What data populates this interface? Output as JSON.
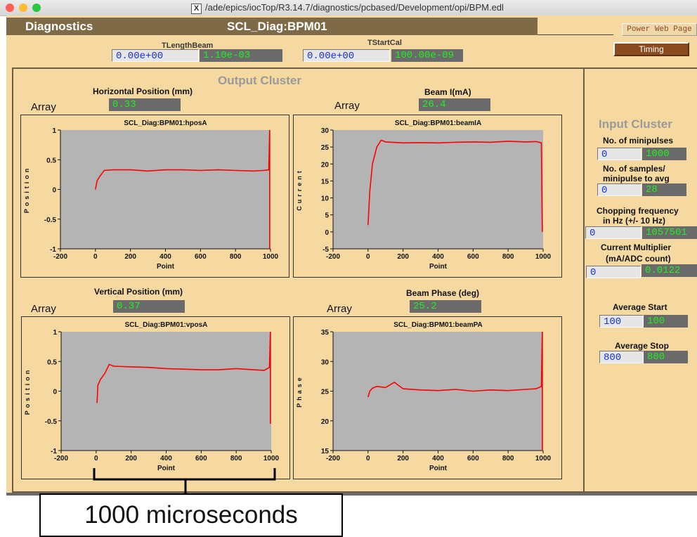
{
  "window": {
    "title": "/ade/epics/iocTop/R3.14.7/diagnostics/pcbased/Development/opi/BPM.edl",
    "dots": [
      "#fe5f57",
      "#febc2e",
      "#28c840"
    ]
  },
  "header": {
    "left_title": "Diagnostics",
    "device": "SCL_Diag:BPM01",
    "power_button": "Power Web Page",
    "timing_button": "Timing"
  },
  "top_fields": {
    "tlength": {
      "label": "TLengthBeam",
      "set": "0.00e+00",
      "readback": "1.10e-03"
    },
    "tstart": {
      "label": "TStartCal",
      "set": "0.00e+00",
      "readback": "100.00e-09"
    }
  },
  "output_cluster": {
    "title": "Output Cluster",
    "array_label": "Array",
    "x_axis_label": "Point",
    "plots": [
      {
        "heading": "Horizontal Position (mm)",
        "value": "0.33",
        "chart_title": "SCL_Diag:BPM01:hposA",
        "ylabel": "Position"
      },
      {
        "heading": "Beam I(mA)",
        "value": "26.4",
        "chart_title": "SCL_Diag:BPM01:beamIA",
        "ylabel": "Current"
      },
      {
        "heading": "Vertical Position (mm)",
        "value": "0.37",
        "chart_title": "SCL_Diag:BPM01:vposA",
        "ylabel": "Position"
      },
      {
        "heading": "Beam Phase (deg)",
        "value": "25.2",
        "chart_title": "SCL_Diag:BPM01:beamPA",
        "ylabel": "Phase"
      }
    ]
  },
  "input_cluster": {
    "title": "Input Cluster",
    "minipulses": {
      "label": "No. of minipulses",
      "set": "0",
      "readback": "1000"
    },
    "samples": {
      "label1": "No. of samples/",
      "label2": "minipulse to avg",
      "set": "0",
      "readback": "28"
    },
    "chopping": {
      "label1": "Chopping frequency",
      "label2": "in Hz (+/- 10 Hz)",
      "set": "0",
      "readback": "1057501"
    },
    "multiplier": {
      "label1": "Current Multiplier",
      "label2": "(mA/ADC count)",
      "set": "0",
      "readback": "0.0122"
    },
    "avg_start": {
      "label": "Average Start",
      "set": "100",
      "readback": "100"
    },
    "avg_stop": {
      "label": "Average Stop",
      "set": "800",
      "readback": "800"
    }
  },
  "annotation": {
    "text": "1000 microseconds"
  },
  "chart_data": [
    {
      "type": "line",
      "title": "SCL_Diag:BPM01:hposA",
      "xlabel": "Point",
      "ylabel": "Position",
      "xlim": [
        -200,
        1000
      ],
      "ylim": [
        -1,
        1
      ],
      "xticks": [
        "-200",
        "0",
        "200",
        "400",
        "600",
        "800",
        "1000"
      ],
      "yticks": [
        "1",
        "0.5",
        "0",
        "-0.5",
        "-1"
      ],
      "series": [
        {
          "color": "#ff0000",
          "x": [
            0,
            10,
            25,
            50,
            100,
            200,
            300,
            400,
            500,
            600,
            700,
            800,
            900,
            960,
            990,
            995,
            995
          ],
          "y": [
            0.0,
            0.15,
            0.22,
            0.32,
            0.33,
            0.33,
            0.31,
            0.33,
            0.33,
            0.32,
            0.33,
            0.32,
            0.31,
            0.32,
            0.33,
            1.0,
            -1.0
          ]
        }
      ]
    },
    {
      "type": "line",
      "title": "SCL_Diag:BPM01:beamIA",
      "xlabel": "Point",
      "ylabel": "Current",
      "xlim": [
        -200,
        1000
      ],
      "ylim": [
        -5,
        30
      ],
      "xticks": [
        "-200",
        "0",
        "200",
        "400",
        "600",
        "800",
        "1000"
      ],
      "yticks": [
        "30",
        "25",
        "20",
        "15",
        "10",
        "5",
        "0",
        "-5"
      ],
      "series": [
        {
          "color": "#ff0000",
          "x": [
            0,
            10,
            25,
            50,
            75,
            100,
            200,
            300,
            400,
            500,
            600,
            700,
            800,
            900,
            960,
            990,
            995
          ],
          "y": [
            2,
            12,
            20,
            25,
            27,
            26.5,
            26.2,
            26.3,
            26.2,
            26.4,
            26.5,
            26.4,
            26.7,
            26.5,
            26.6,
            26.2,
            0
          ]
        }
      ]
    },
    {
      "type": "line",
      "title": "SCL_Diag:BPM01:vposA",
      "xlabel": "Point",
      "ylabel": "Position",
      "xlim": [
        -200,
        1000
      ],
      "ylim": [
        -1,
        1
      ],
      "xticks": [
        "-200",
        "0",
        "200",
        "400",
        "600",
        "800",
        "1000"
      ],
      "yticks": [
        "1",
        "0.5",
        "0",
        "-0.5",
        "-1"
      ],
      "series": [
        {
          "color": "#ff0000",
          "x": [
            5,
            10,
            25,
            50,
            75,
            100,
            200,
            300,
            400,
            500,
            600,
            700,
            800,
            900,
            960,
            990,
            995,
            995
          ],
          "y": [
            -0.2,
            0.1,
            0.2,
            0.3,
            0.45,
            0.42,
            0.41,
            0.4,
            0.38,
            0.37,
            0.36,
            0.36,
            0.38,
            0.36,
            0.35,
            0.4,
            1.0,
            -0.55
          ]
        }
      ]
    },
    {
      "type": "line",
      "title": "SCL_Diag:BPM01:beamPA",
      "xlabel": "Point",
      "ylabel": "Phase",
      "xlim": [
        -200,
        1000
      ],
      "ylim": [
        15,
        35
      ],
      "xticks": [
        "-200",
        "0",
        "200",
        "400",
        "600",
        "800",
        "1000"
      ],
      "yticks": [
        "35",
        "30",
        "25",
        "20",
        "15"
      ],
      "series": [
        {
          "color": "#ff0000",
          "x": [
            0,
            10,
            25,
            50,
            100,
            150,
            200,
            300,
            400,
            500,
            600,
            700,
            800,
            900,
            960,
            990,
            995,
            995
          ],
          "y": [
            24.0,
            25.0,
            25.5,
            25.8,
            25.6,
            26.5,
            25.4,
            25.2,
            25.1,
            25.3,
            25.0,
            25.2,
            25.1,
            25.3,
            25.4,
            25.8,
            35.0,
            15.0
          ]
        }
      ]
    }
  ]
}
